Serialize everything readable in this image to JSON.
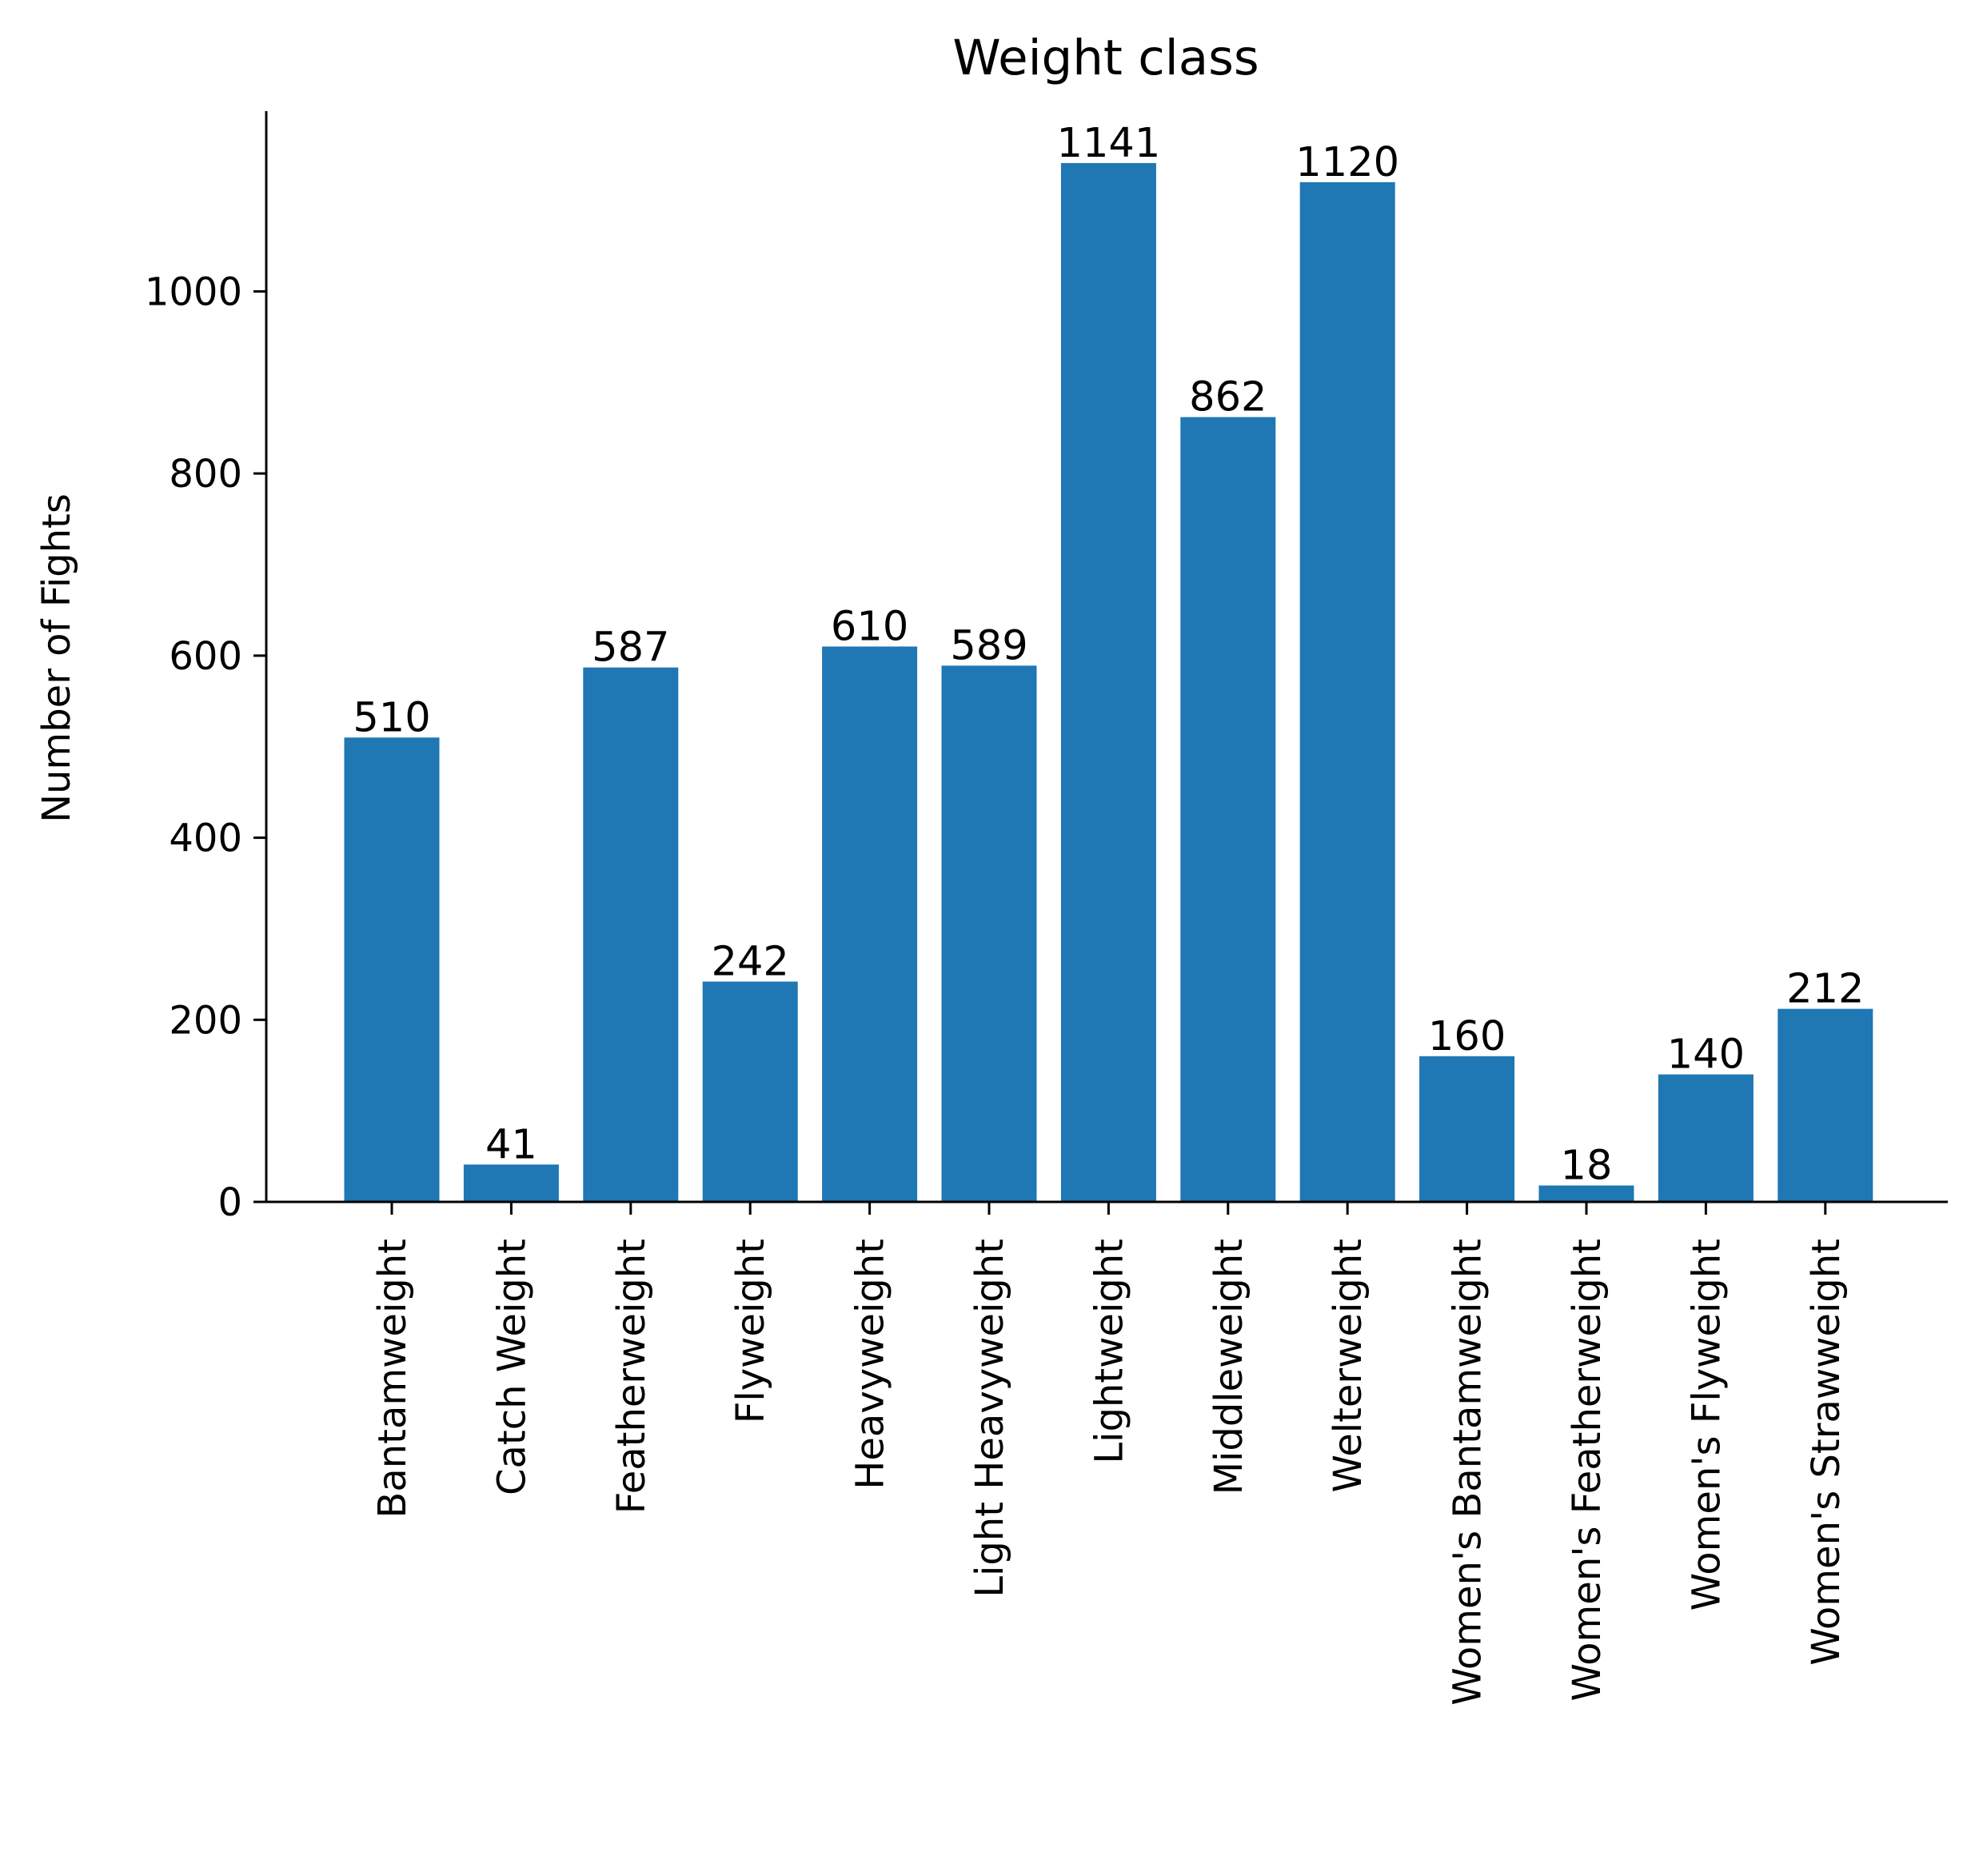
{
  "chart_data": {
    "type": "bar",
    "title": "Weight class",
    "xlabel": "",
    "ylabel": "Number of Fights",
    "categories": [
      "Bantamweight",
      "Catch Weight",
      "Featherweight",
      "Flyweight",
      "Heavyweight",
      "Light Heavyweight",
      "Lightweight",
      "Middleweight",
      "Welterweight",
      "Women's Bantamweight",
      "Women's Featherweight",
      "Women's Flyweight",
      "Women's Strawweight"
    ],
    "values": [
      510,
      41,
      587,
      242,
      610,
      589,
      1141,
      862,
      1120,
      160,
      18,
      140,
      212
    ],
    "data_labels": [
      "510",
      "41",
      "587",
      "242",
      "610",
      "589",
      "1141",
      "862",
      "1120",
      "160",
      "18",
      "140",
      "212"
    ],
    "yticks": [
      0,
      200,
      400,
      600,
      800,
      1000
    ],
    "ylim": [
      0,
      1198
    ],
    "bar_color": "#1f77b4",
    "grid": false,
    "legend": "none"
  }
}
